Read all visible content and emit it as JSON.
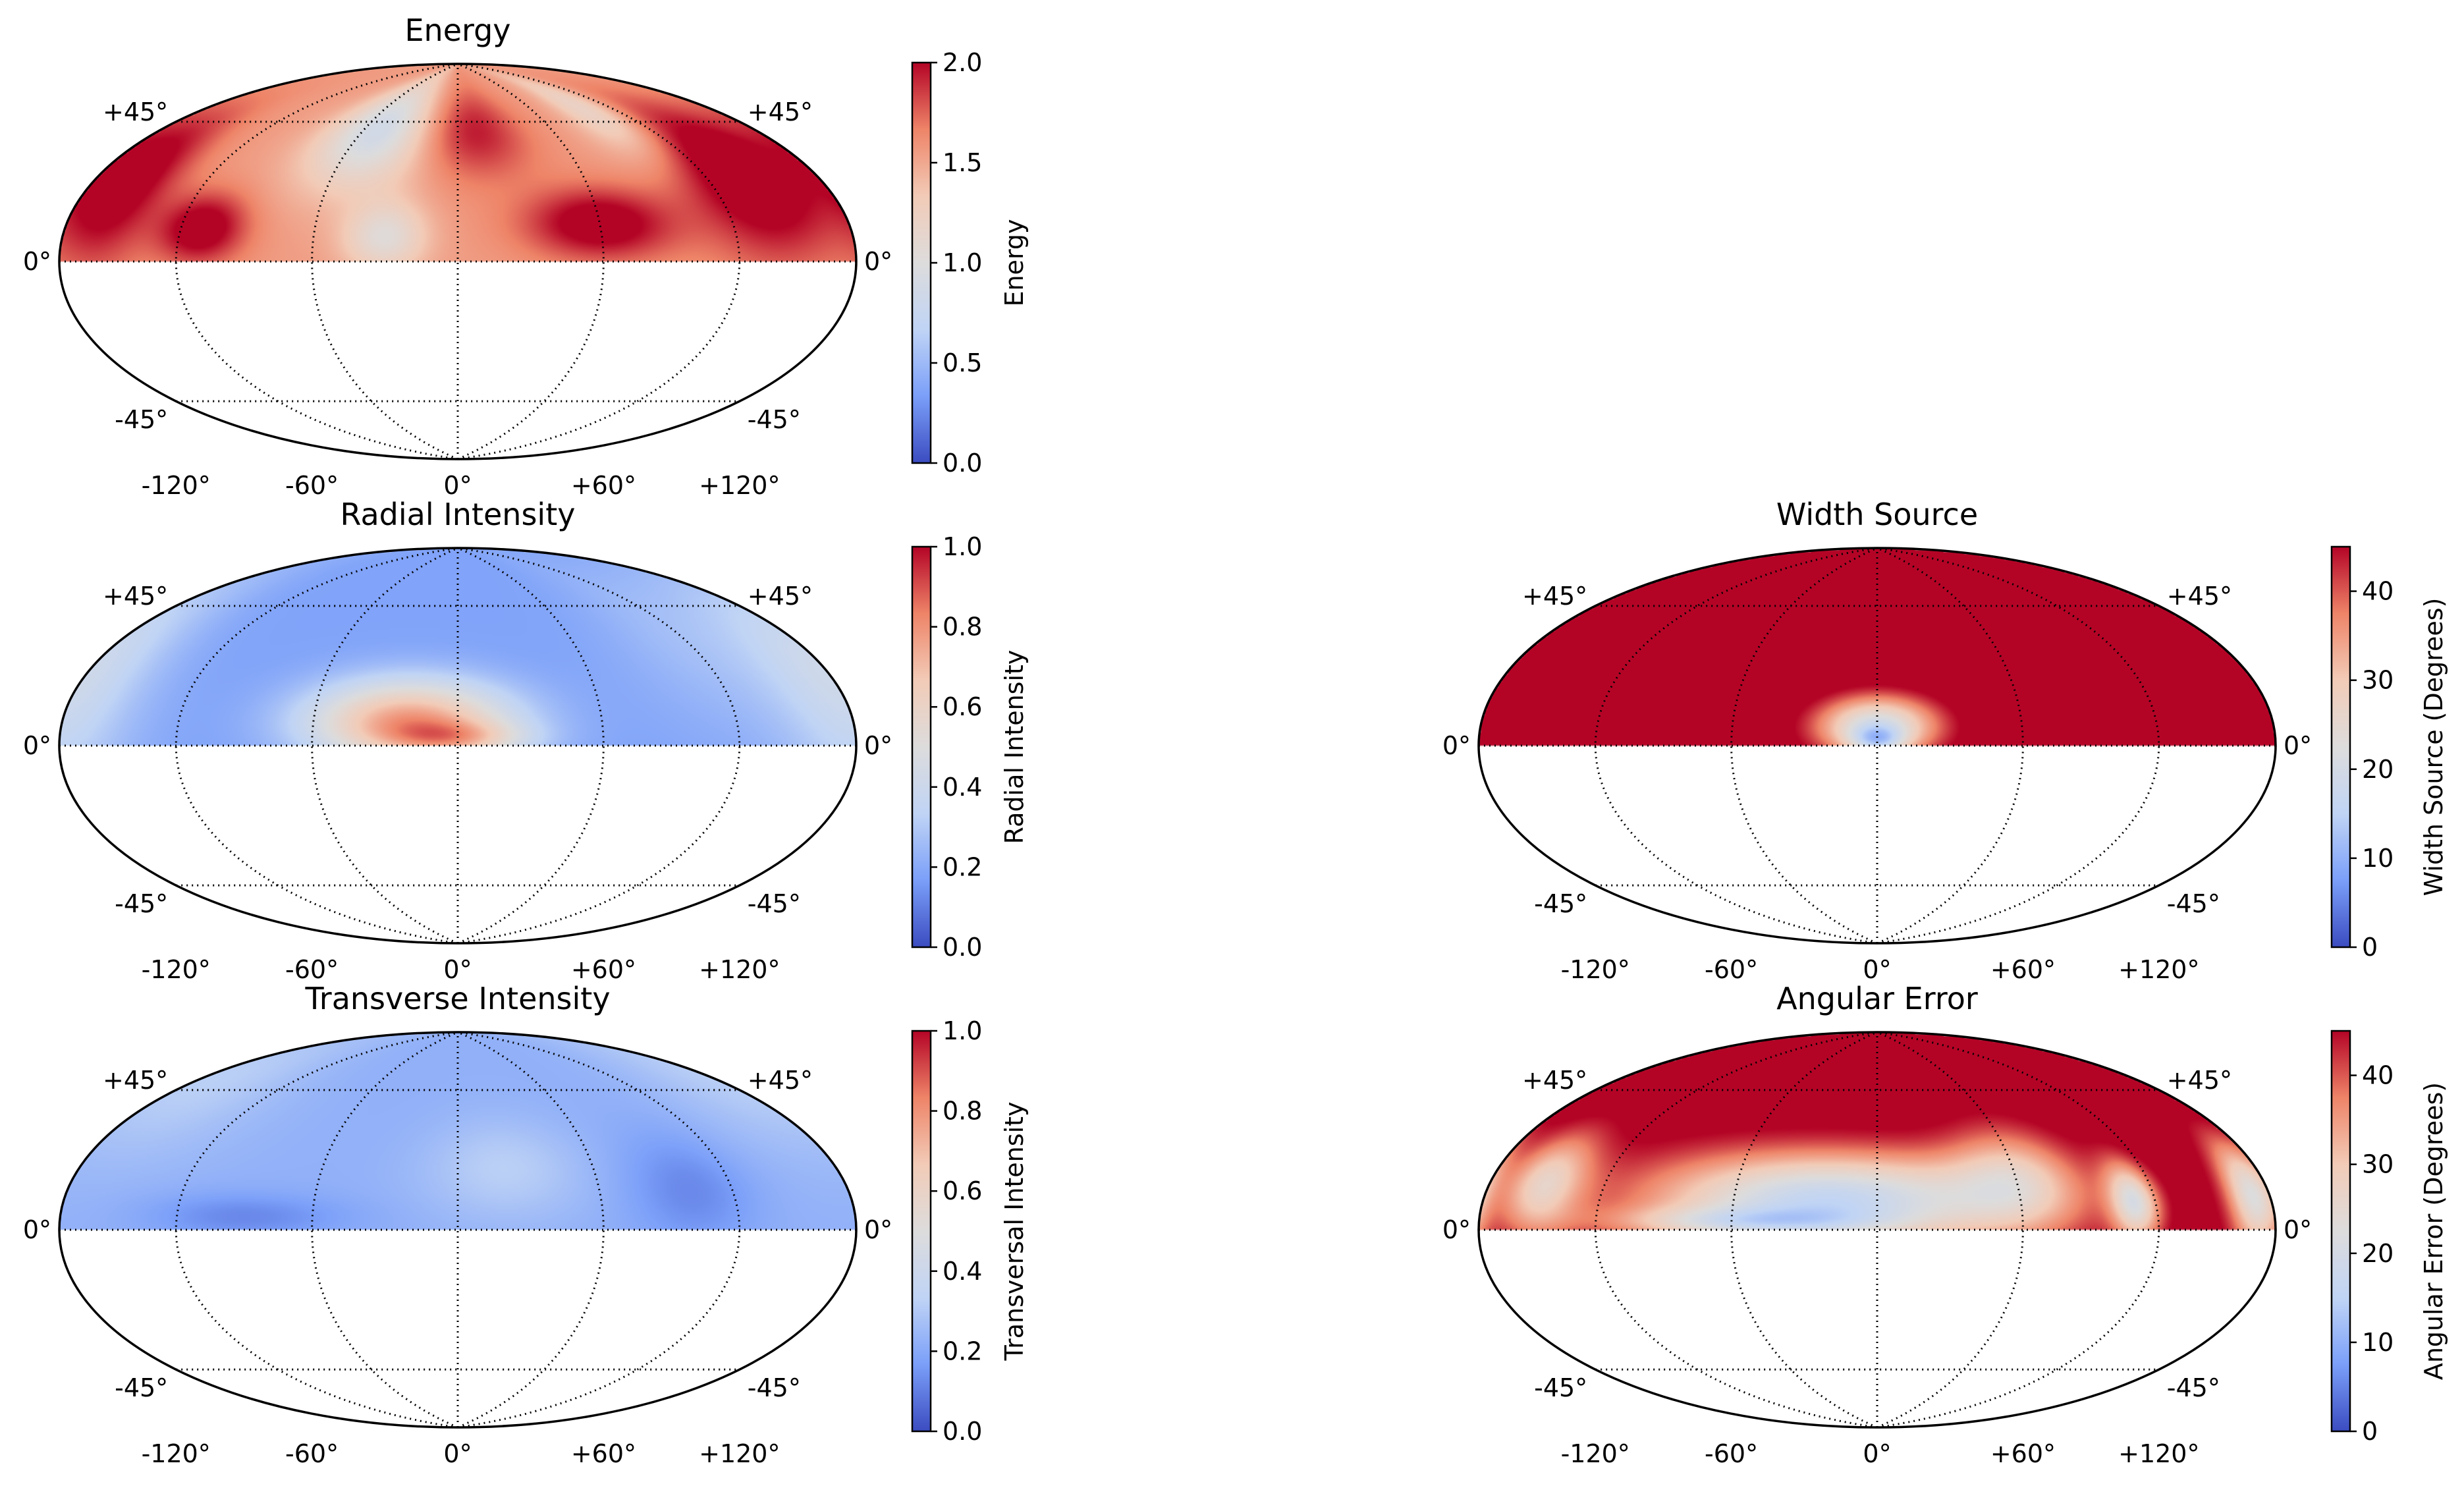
{
  "colormap": {
    "name": "coolwarm",
    "stops": [
      "#3b4cc0",
      "#7b9ff9",
      "#c0d4f5",
      "#dddcdc",
      "#f2cbb7",
      "#ee8468",
      "#b40426"
    ]
  },
  "chart_data": [
    {
      "id": "energy",
      "type": "heatmap",
      "projection": "hammer",
      "title": "Energy",
      "colorbar_label": "Energy",
      "vmin": 0.0,
      "vmax": 2.0,
      "colorbar_ticks": [
        "0.0",
        "0.5",
        "1.0",
        "1.5",
        "2.0"
      ],
      "lon_tick_labels": [
        "-120°",
        "-60°",
        "0°",
        "+60°",
        "+120°"
      ],
      "lat_tick_labels": [
        "+45°",
        "0°",
        "-45°"
      ],
      "lon_range_deg": [
        -180,
        180
      ],
      "lat_range_deg": [
        -90,
        90
      ],
      "data_lat_range_deg": [
        0,
        90
      ],
      "grid": true,
      "base_value": 1.55,
      "features": [
        {
          "lon": -160,
          "lat": 25,
          "sx": 18,
          "sy": 18,
          "a": 0.6
        },
        {
          "lon": -110,
          "lat": 12,
          "sx": 14,
          "sy": 9,
          "a": 0.6
        },
        {
          "lon": -50,
          "lat": 55,
          "sx": 22,
          "sy": 18,
          "a": -0.7
        },
        {
          "lon": 10,
          "lat": 55,
          "sx": 22,
          "sy": 15,
          "a": 0.4
        },
        {
          "lon": 60,
          "lat": 15,
          "sx": 22,
          "sy": 10,
          "a": 0.6
        },
        {
          "lon": 140,
          "lat": 30,
          "sx": 25,
          "sy": 20,
          "a": 0.7
        },
        {
          "lon": -30,
          "lat": 10,
          "sx": 12,
          "sy": 10,
          "a": -0.5
        },
        {
          "lon": 100,
          "lat": 60,
          "sx": 15,
          "sy": 15,
          "a": -0.4
        }
      ]
    },
    {
      "id": "radial",
      "type": "heatmap",
      "projection": "hammer",
      "title": "Radial Intensity",
      "colorbar_label": "Radial Intensity",
      "vmin": 0.0,
      "vmax": 1.0,
      "colorbar_ticks": [
        "0.0",
        "0.2",
        "0.4",
        "0.6",
        "0.8",
        "1.0"
      ],
      "lon_tick_labels": [
        "-120°",
        "-60°",
        "0°",
        "+60°",
        "+120°"
      ],
      "lat_tick_labels": [
        "+45°",
        "0°",
        "-45°"
      ],
      "lon_range_deg": [
        -180,
        180
      ],
      "lat_range_deg": [
        -90,
        90
      ],
      "data_lat_range_deg": [
        0,
        90
      ],
      "grid": true,
      "base_value": 0.18,
      "features": [
        {
          "lon": -20,
          "lat": 10,
          "sx": 30,
          "sy": 12,
          "a": 0.6
        },
        {
          "lon": 0,
          "lat": 3,
          "sx": 20,
          "sy": 5,
          "a": 0.25
        },
        {
          "lon": -170,
          "lat": 20,
          "sx": 25,
          "sy": 25,
          "a": 0.12
        },
        {
          "lon": 170,
          "lat": 20,
          "sx": 25,
          "sy": 25,
          "a": 0.12
        },
        {
          "lon": 120,
          "lat": 40,
          "sx": 30,
          "sy": 25,
          "a": 0.08
        }
      ]
    },
    {
      "id": "transverse",
      "type": "heatmap",
      "projection": "hammer",
      "title": "Transverse Intensity",
      "colorbar_label": "Transversal Intensity",
      "vmin": 0.0,
      "vmax": 1.0,
      "colorbar_ticks": [
        "0.0",
        "0.2",
        "0.4",
        "0.6",
        "0.8",
        "1.0"
      ],
      "lon_tick_labels": [
        "-120°",
        "-60°",
        "0°",
        "+60°",
        "+120°"
      ],
      "lat_tick_labels": [
        "+45°",
        "0°",
        "-45°"
      ],
      "lon_range_deg": [
        -180,
        180
      ],
      "lat_range_deg": [
        -90,
        90
      ],
      "data_lat_range_deg": [
        0,
        90
      ],
      "grid": true,
      "base_value": 0.22,
      "features": [
        {
          "lon": -170,
          "lat": 50,
          "sx": 40,
          "sy": 20,
          "a": 0.1
        },
        {
          "lon": 20,
          "lat": 25,
          "sx": 25,
          "sy": 15,
          "a": 0.1
        },
        {
          "lon": 100,
          "lat": 15,
          "sx": 20,
          "sy": 15,
          "a": -0.1
        },
        {
          "lon": -90,
          "lat": 5,
          "sx": 30,
          "sy": 6,
          "a": -0.1
        }
      ]
    },
    {
      "id": "width",
      "type": "heatmap",
      "projection": "hammer",
      "title": "Width Source",
      "colorbar_label": "Width Source (Degrees)",
      "vmin": 0,
      "vmax": 45,
      "colorbar_ticks": [
        "0",
        "10",
        "20",
        "30",
        "40"
      ],
      "colorbar_tick_values": [
        0,
        10,
        20,
        30,
        40
      ],
      "lon_tick_labels": [
        "-120°",
        "-60°",
        "0°",
        "+60°",
        "+120°"
      ],
      "lat_tick_labels": [
        "+45°",
        "0°",
        "-45°"
      ],
      "lon_range_deg": [
        -180,
        180
      ],
      "lat_range_deg": [
        -90,
        90
      ],
      "data_lat_range_deg": [
        0,
        90
      ],
      "grid": true,
      "base_value": 50,
      "features": [
        {
          "lon": 0,
          "lat": 8,
          "sx": 18,
          "sy": 9,
          "a": -30
        },
        {
          "lon": 0,
          "lat": 2,
          "sx": 8,
          "sy": 4,
          "a": -15
        }
      ]
    },
    {
      "id": "angular",
      "type": "heatmap",
      "projection": "hammer",
      "title": "Angular Error",
      "colorbar_label": "Angular Error (Degrees)",
      "vmin": 0,
      "vmax": 45,
      "colorbar_ticks": [
        "0",
        "10",
        "20",
        "30",
        "40"
      ],
      "colorbar_tick_values": [
        0,
        10,
        20,
        30,
        40
      ],
      "lon_tick_labels": [
        "-120°",
        "-60°",
        "0°",
        "+60°",
        "+120°"
      ],
      "lat_tick_labels": [
        "+45°",
        "0°",
        "-45°"
      ],
      "lon_range_deg": [
        -180,
        180
      ],
      "lat_range_deg": [
        -90,
        90
      ],
      "data_lat_range_deg": [
        0,
        90
      ],
      "grid": true,
      "base_value": 48,
      "features": [
        {
          "lon": -20,
          "lat": 12,
          "sx": 55,
          "sy": 14,
          "a": -32
        },
        {
          "lon": -60,
          "lat": 3,
          "sx": 40,
          "sy": 4,
          "a": -12
        },
        {
          "lon": -150,
          "lat": 15,
          "sx": 15,
          "sy": 12,
          "a": -20
        },
        {
          "lon": 60,
          "lat": 20,
          "sx": 20,
          "sy": 15,
          "a": -15
        },
        {
          "lon": 110,
          "lat": 10,
          "sx": 8,
          "sy": 10,
          "a": -25
        },
        {
          "lon": 170,
          "lat": 10,
          "sx": 10,
          "sy": 12,
          "a": -25
        }
      ]
    }
  ]
}
